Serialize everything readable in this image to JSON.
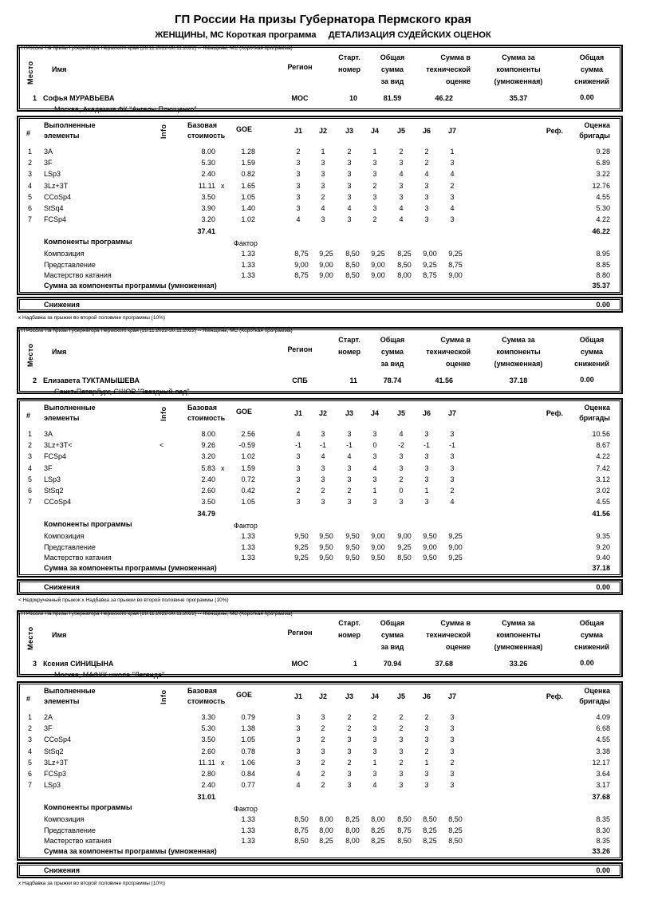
{
  "header": {
    "title": "ГП России На призы Губернатора Пермского края",
    "subtitle": "ЖЕНЩИНЫ, МС Короткая программа",
    "subtitle2": "ДЕТАЛИЗАЦИЯ СУДЕЙСКИХ ОЦЕНОК"
  },
  "labels": {
    "event_line": "ГП России На призы Губернатора Пермского края (28.11.2022-30.11.2022)  --  Женщины, МС  (Короткая программа)",
    "place": "Место",
    "name": "Имя",
    "region": "Регион",
    "start_no": [
      "Старт.",
      "номер"
    ],
    "total": [
      "Общая",
      "сумма",
      "за вид"
    ],
    "tes": [
      "Сумма в",
      "технической",
      "оценке"
    ],
    "pcs": [
      "Сумма за",
      "компоненты",
      "(умноженная)"
    ],
    "ded": [
      "Общая",
      "сумма",
      "снижений"
    ],
    "num": "#",
    "elements": [
      "Выполненные",
      "элементы"
    ],
    "info": "Info",
    "base": [
      "Базовая",
      "стоимость"
    ],
    "goe": "GOE",
    "judges": [
      "J1",
      "J2",
      "J3",
      "J4",
      "J5",
      "J6",
      "J7"
    ],
    "ref": "Реф.",
    "panel": [
      "Оценка",
      "бригады"
    ],
    "components": "Компоненты программы",
    "factor": "Фактор",
    "pcs_sum": "Сумма за компоненты программы (умноженная)",
    "deductions": "Снижения"
  },
  "skaters": [
    {
      "place": "1",
      "name": "Софья МУРАВЬЕВА",
      "club": "Москва, Академия ФК \"Ангелы Плющенко\"",
      "region": "МОС",
      "start_no": "10",
      "total": "81.59",
      "tes": "46.22",
      "pcs": "35.37",
      "ded": "0.00",
      "elements": [
        {
          "n": "1",
          "el": "3A",
          "info": "",
          "base": "8.00",
          "x": "",
          "goe": "1.28",
          "j": [
            "2",
            "1",
            "2",
            "1",
            "2",
            "2",
            "1"
          ],
          "score": "9.28"
        },
        {
          "n": "2",
          "el": "3F",
          "info": "",
          "base": "5.30",
          "x": "",
          "goe": "1.59",
          "j": [
            "3",
            "3",
            "3",
            "3",
            "3",
            "2",
            "3"
          ],
          "score": "6.89"
        },
        {
          "n": "3",
          "el": "LSp3",
          "info": "",
          "base": "2.40",
          "x": "",
          "goe": "0.82",
          "j": [
            "3",
            "3",
            "3",
            "3",
            "4",
            "4",
            "4"
          ],
          "score": "3.22"
        },
        {
          "n": "4",
          "el": "3Lz+3T",
          "info": "",
          "base": "11.11",
          "x": "x",
          "goe": "1.65",
          "j": [
            "3",
            "3",
            "3",
            "2",
            "3",
            "3",
            "2"
          ],
          "score": "12.76"
        },
        {
          "n": "5",
          "el": "CCoSp4",
          "info": "",
          "base": "3.50",
          "x": "",
          "goe": "1.05",
          "j": [
            "3",
            "2",
            "3",
            "3",
            "3",
            "3",
            "3"
          ],
          "score": "4.55"
        },
        {
          "n": "6",
          "el": "StSq4",
          "info": "",
          "base": "3.90",
          "x": "",
          "goe": "1.40",
          "j": [
            "3",
            "4",
            "4",
            "3",
            "4",
            "3",
            "4"
          ],
          "score": "5.30"
        },
        {
          "n": "7",
          "el": "FCSp4",
          "info": "",
          "base": "3.20",
          "x": "",
          "goe": "1.02",
          "j": [
            "4",
            "3",
            "3",
            "2",
            "4",
            "3",
            "3"
          ],
          "score": "4.22"
        }
      ],
      "base_total": "37.41",
      "tes_total": "46.22",
      "components": [
        {
          "name": "Композиция",
          "factor": "1.33",
          "j": [
            "8,75",
            "9,25",
            "8,50",
            "9,25",
            "8,25",
            "9,00",
            "9,25"
          ],
          "score": "8.95"
        },
        {
          "name": "Представление",
          "factor": "1.33",
          "j": [
            "9,00",
            "9,00",
            "8,50",
            "9,00",
            "8,50",
            "9,25",
            "8,75"
          ],
          "score": "8.85"
        },
        {
          "name": "Мастерство катания",
          "factor": "1.33",
          "j": [
            "8,75",
            "9,00",
            "8,50",
            "9,00",
            "8,00",
            "8,75",
            "9,00"
          ],
          "score": "8.80"
        }
      ],
      "pcs_total": "35.37",
      "deductions": "0.00",
      "footnote": "x Надбавка за прыжки во второй половине программы (10%)"
    },
    {
      "place": "2",
      "name": "Елизавета ТУКТАМЫШЕВА",
      "club": "Санкт-Петербург, СШОР \"Звездный лед\"",
      "region": "СПБ",
      "start_no": "11",
      "total": "78.74",
      "tes": "41.56",
      "pcs": "37.18",
      "ded": "0.00",
      "elements": [
        {
          "n": "1",
          "el": "3A",
          "info": "",
          "base": "8.00",
          "x": "",
          "goe": "2.56",
          "j": [
            "4",
            "3",
            "3",
            "3",
            "4",
            "3",
            "3"
          ],
          "score": "10.56"
        },
        {
          "n": "2",
          "el": "3Lz+3T<",
          "info": "<",
          "base": "9.26",
          "x": "",
          "goe": "-0.59",
          "j": [
            "-1",
            "-1",
            "-1",
            "0",
            "-2",
            "-1",
            "-1"
          ],
          "score": "8.67"
        },
        {
          "n": "3",
          "el": "FCSp4",
          "info": "",
          "base": "3.20",
          "x": "",
          "goe": "1.02",
          "j": [
            "3",
            "4",
            "4",
            "3",
            "3",
            "3",
            "3"
          ],
          "score": "4.22"
        },
        {
          "n": "4",
          "el": "3F",
          "info": "",
          "base": "5.83",
          "x": "x",
          "goe": "1.59",
          "j": [
            "3",
            "3",
            "3",
            "4",
            "3",
            "3",
            "3"
          ],
          "score": "7.42"
        },
        {
          "n": "5",
          "el": "LSp3",
          "info": "",
          "base": "2.40",
          "x": "",
          "goe": "0.72",
          "j": [
            "3",
            "3",
            "3",
            "3",
            "2",
            "3",
            "3"
          ],
          "score": "3.12"
        },
        {
          "n": "6",
          "el": "StSq2",
          "info": "",
          "base": "2.60",
          "x": "",
          "goe": "0.42",
          "j": [
            "2",
            "2",
            "2",
            "1",
            "0",
            "1",
            "2"
          ],
          "score": "3.02"
        },
        {
          "n": "7",
          "el": "CCoSp4",
          "info": "",
          "base": "3.50",
          "x": "",
          "goe": "1.05",
          "j": [
            "3",
            "3",
            "3",
            "3",
            "3",
            "3",
            "4"
          ],
          "score": "4.55"
        }
      ],
      "base_total": "34.79",
      "tes_total": "41.56",
      "components": [
        {
          "name": "Композиция",
          "factor": "1.33",
          "j": [
            "9,50",
            "9,50",
            "9,50",
            "9,00",
            "9,00",
            "9,50",
            "9,25"
          ],
          "score": "9.35"
        },
        {
          "name": "Представление",
          "factor": "1.33",
          "j": [
            "9,25",
            "9,50",
            "9,50",
            "9,00",
            "9,25",
            "9,00",
            "9,00"
          ],
          "score": "9.20"
        },
        {
          "name": "Мастерство катания",
          "factor": "1.33",
          "j": [
            "9,25",
            "9,50",
            "9,50",
            "9,50",
            "8,50",
            "9,50",
            "9,25"
          ],
          "score": "9.40"
        }
      ],
      "pcs_total": "37.18",
      "deductions": "0.00",
      "footnote": "< Недокрученный прыжок   x Надбавка за прыжки во второй половине программы (10%)"
    },
    {
      "place": "3",
      "name": "Ксения СИНИЦЫНА",
      "club": "Москва, МАФКК школа \"Легенда\"",
      "region": "МОС",
      "start_no": "1",
      "total": "70.94",
      "tes": "37.68",
      "pcs": "33.26",
      "ded": "0.00",
      "elements": [
        {
          "n": "1",
          "el": "2A",
          "info": "",
          "base": "3.30",
          "x": "",
          "goe": "0.79",
          "j": [
            "3",
            "3",
            "2",
            "2",
            "2",
            "2",
            "3"
          ],
          "score": "4.09"
        },
        {
          "n": "2",
          "el": "3F",
          "info": "",
          "base": "5.30",
          "x": "",
          "goe": "1.38",
          "j": [
            "3",
            "2",
            "2",
            "3",
            "2",
            "3",
            "3"
          ],
          "score": "6.68"
        },
        {
          "n": "3",
          "el": "CCoSp4",
          "info": "",
          "base": "3.50",
          "x": "",
          "goe": "1.05",
          "j": [
            "3",
            "2",
            "3",
            "3",
            "3",
            "3",
            "3"
          ],
          "score": "4.55"
        },
        {
          "n": "4",
          "el": "StSq2",
          "info": "",
          "base": "2.60",
          "x": "",
          "goe": "0.78",
          "j": [
            "3",
            "3",
            "3",
            "3",
            "3",
            "2",
            "3"
          ],
          "score": "3.38"
        },
        {
          "n": "5",
          "el": "3Lz+3T",
          "info": "",
          "base": "11.11",
          "x": "x",
          "goe": "1.06",
          "j": [
            "3",
            "2",
            "2",
            "1",
            "2",
            "1",
            "2"
          ],
          "score": "12.17"
        },
        {
          "n": "6",
          "el": "FCSp3",
          "info": "",
          "base": "2.80",
          "x": "",
          "goe": "0.84",
          "j": [
            "4",
            "2",
            "3",
            "3",
            "3",
            "3",
            "3"
          ],
          "score": "3.64"
        },
        {
          "n": "7",
          "el": "LSp3",
          "info": "",
          "base": "2.40",
          "x": "",
          "goe": "0.77",
          "j": [
            "4",
            "2",
            "3",
            "4",
            "3",
            "3",
            "3"
          ],
          "score": "3.17"
        }
      ],
      "base_total": "31.01",
      "tes_total": "37.68",
      "components": [
        {
          "name": "Композиция",
          "factor": "1.33",
          "j": [
            "8,50",
            "8,00",
            "8,25",
            "8,00",
            "8,50",
            "8,50",
            "8,50"
          ],
          "score": "8.35"
        },
        {
          "name": "Представление",
          "factor": "1.33",
          "j": [
            "8,75",
            "8,00",
            "8,00",
            "8,25",
            "8,75",
            "8,25",
            "8,25"
          ],
          "score": "8.30"
        },
        {
          "name": "Мастерство катания",
          "factor": "1.33",
          "j": [
            "8,50",
            "8,25",
            "8,00",
            "8,25",
            "8,50",
            "8,25",
            "8,50"
          ],
          "score": "8.35"
        }
      ],
      "pcs_total": "33.26",
      "deductions": "0.00",
      "footnote": "x Надбавка за прыжки во второй половине программы (10%)"
    }
  ]
}
